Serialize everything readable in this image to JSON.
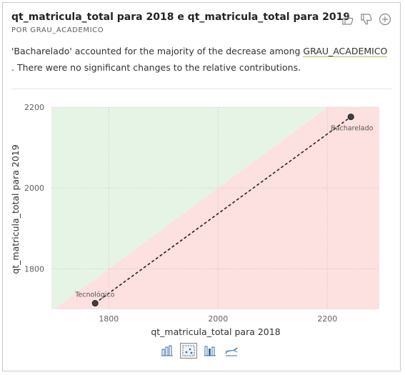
{
  "header": {
    "title": "qt_matricula_total para 2018 e qt_matricula_total para 2019",
    "subtitle": "POR GRAU_ACADEMICO"
  },
  "insight": {
    "part1": "'Bacharelado' accounted for the majority of the decrease among ",
    "field": "GRAU_ACADEMICO",
    "part2": " . There were no significant changes to the relative contributions."
  },
  "icons": [
    "thumbs-up-icon",
    "thumbs-down-icon",
    "plus-circle-icon"
  ],
  "tabs": [
    {
      "name": "column-chart-tab",
      "active": false
    },
    {
      "name": "scatter-chart-tab",
      "active": true
    },
    {
      "name": "bar-chart-tab",
      "active": false
    },
    {
      "name": "ribbon-chart-tab",
      "active": false
    }
  ],
  "chart_data": {
    "type": "scatter",
    "xlabel": "qt_matricula_total para 2018",
    "ylabel": "qt_matricula_total para 2019",
    "xlim": [
      1695,
      2295
    ],
    "ylim": [
      1700,
      2200
    ],
    "x_ticks": [
      1800,
      2000,
      2200
    ],
    "y_ticks": [
      1800,
      2000,
      2200
    ],
    "grid": true,
    "regions": {
      "increase_color": "#e6f4e6",
      "decrease_color": "#fde0e0"
    },
    "points": [
      {
        "label": "Tecnológico",
        "x": 1775,
        "y": 1715
      },
      {
        "label": "Bacharelado",
        "x": 2243,
        "y": 2176
      }
    ],
    "colors": {
      "point": "#404040",
      "line": "#222222"
    }
  }
}
